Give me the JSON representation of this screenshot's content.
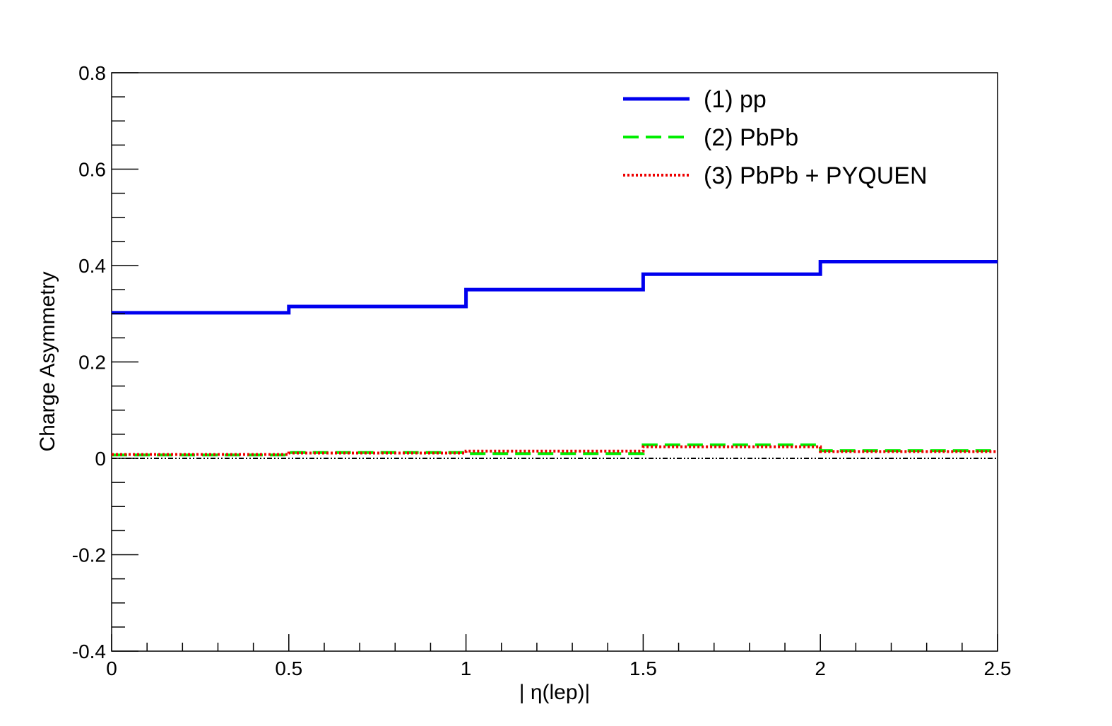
{
  "chart_data": {
    "type": "line",
    "title": "",
    "xlabel": "| η(lep)|",
    "ylabel": "Charge Asymmetry",
    "xlim": [
      0,
      2.5
    ],
    "ylim": [
      -0.4,
      0.8
    ],
    "xticks": [
      0,
      0.5,
      1,
      1.5,
      2,
      2.5
    ],
    "xtick_labels": [
      "0",
      "0.5",
      "1",
      "1.5",
      "2",
      "2.5"
    ],
    "yticks": [
      -0.4,
      -0.2,
      0,
      0.2,
      0.4,
      0.6,
      0.8
    ],
    "ytick_labels": [
      "-0.4",
      "-0.2",
      "0",
      "0.2",
      "0.4",
      "0.6",
      "0.8"
    ],
    "grid": false,
    "legend_position": "top-right",
    "bin_edges": [
      0,
      0.5,
      1,
      1.5,
      2,
      2.5
    ],
    "series": [
      {
        "name": "(1) pp",
        "values": [
          0.302,
          0.315,
          0.35,
          0.382,
          0.408
        ],
        "color": "#0000ee",
        "style": "solid"
      },
      {
        "name": "(2) PbPb",
        "values": [
          0.007,
          0.012,
          0.01,
          0.028,
          0.016
        ],
        "color": "#00ee00",
        "style": "dashed"
      },
      {
        "name": "(3) PbPb + PYQUEN",
        "values": [
          0.008,
          0.011,
          0.015,
          0.024,
          0.014
        ],
        "color": "#ee0000",
        "style": "dotted"
      }
    ],
    "reference_line": {
      "y": 0,
      "color": "#000000",
      "style": "dash-dot"
    }
  }
}
